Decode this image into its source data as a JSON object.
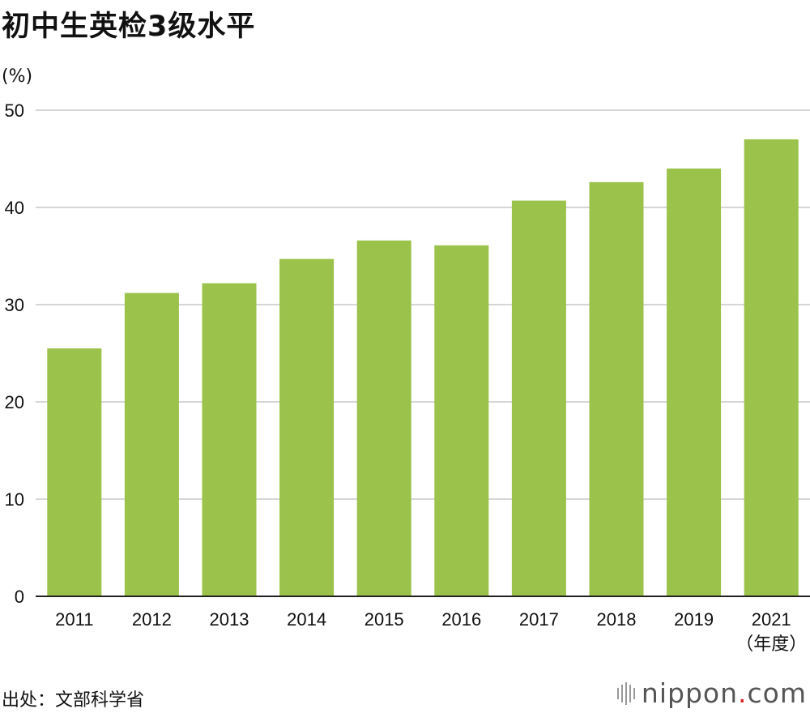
{
  "title": "初中生英检3级水平",
  "unit": "(%)",
  "source": "出处：文部科学省",
  "logo": {
    "name": "nippon",
    "dot": ".",
    "tld": "com"
  },
  "colors": {
    "bar": "#9bc24b",
    "grid": "#c8c8c8",
    "axis": "#222222"
  },
  "chart_data": {
    "type": "bar",
    "title": "初中生英检3级水平",
    "ylabel": "(%)",
    "xlabel_suffix": "（年度）",
    "categories": [
      "2011",
      "2012",
      "2013",
      "2014",
      "2015",
      "2016",
      "2017",
      "2018",
      "2019",
      "2021"
    ],
    "values": [
      25.5,
      31.2,
      32.2,
      34.7,
      36.6,
      36.1,
      40.7,
      42.6,
      44.0,
      47.0
    ],
    "ylim": [
      0,
      50
    ],
    "yticks": [
      0,
      10,
      20,
      30,
      40,
      50
    ],
    "grid": true
  }
}
